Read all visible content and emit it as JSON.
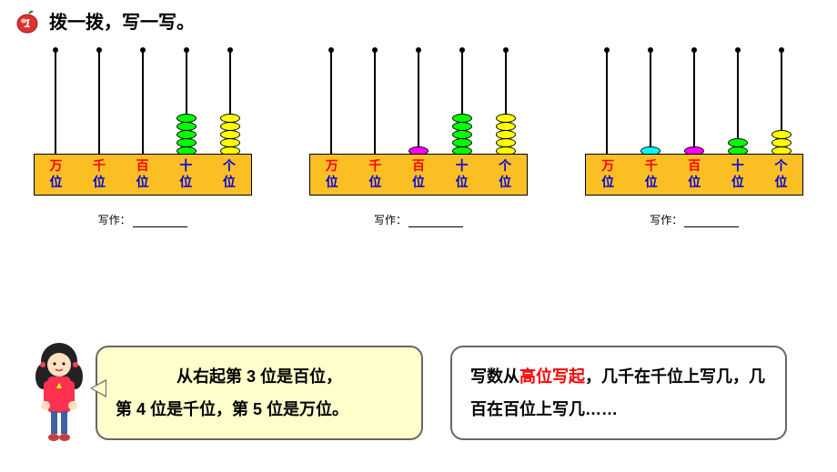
{
  "header": {
    "number": "1",
    "title": "拨一拨，写一写。"
  },
  "colors": {
    "frame": "#fbbf24",
    "bead_green": "#00ff00",
    "bead_yellow": "#ffff00",
    "bead_magenta": "#ff00ff",
    "bead_cyan": "#00ffff",
    "label_blue": "#0000e0",
    "label_red": "#ff0000",
    "bubble1_bg": "#ffffcc"
  },
  "place_values": [
    {
      "char": "万",
      "color": "#ff0000"
    },
    {
      "char": "千",
      "color": "#ff0000"
    },
    {
      "char": "百",
      "color": "#ff0000"
    },
    {
      "char": "十",
      "color": "#0000e0"
    },
    {
      "char": "个",
      "color": "#0000e0"
    }
  ],
  "place_suffix": "位",
  "abaci": [
    {
      "rods": [
        {
          "beads": 0,
          "color": ""
        },
        {
          "beads": 0,
          "color": ""
        },
        {
          "beads": 0,
          "color": ""
        },
        {
          "beads": 5,
          "color": "#00ff00"
        },
        {
          "beads": 5,
          "color": "#ffff00"
        }
      ]
    },
    {
      "rods": [
        {
          "beads": 0,
          "color": ""
        },
        {
          "beads": 0,
          "color": ""
        },
        {
          "beads": 1,
          "color": "#ff00ff"
        },
        {
          "beads": 5,
          "color": "#00ff00"
        },
        {
          "beads": 5,
          "color": "#ffff00"
        }
      ]
    },
    {
      "rods": [
        {
          "beads": 0,
          "color": ""
        },
        {
          "beads": 1,
          "color": "#00ffff"
        },
        {
          "beads": 1,
          "color": "#ff00ff"
        },
        {
          "beads": 2,
          "color": "#00ff00"
        },
        {
          "beads": 3,
          "color": "#ffff00"
        }
      ]
    }
  ],
  "write_label": "写作：",
  "bubble1": {
    "line1": "从右起第 3 位是百位，",
    "line2": "第 4 位是千位，第 5 位是万位。"
  },
  "bubble2": {
    "part1": "写数从",
    "highlight": "高位写起",
    "part2": "，几千在千位上写几，几百在百位上写几……"
  }
}
